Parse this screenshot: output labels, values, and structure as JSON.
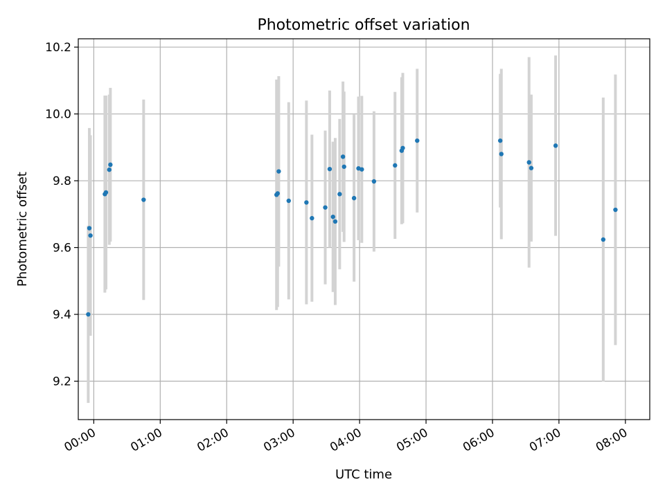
{
  "chart_data": {
    "type": "scatter",
    "title": "Photometric offset variation",
    "xlabel": "UTC time",
    "ylabel": "Photometric offset",
    "x_tick_labels": [
      "00:00",
      "01:00",
      "02:00",
      "03:00",
      "04:00",
      "05:00",
      "06:00",
      "07:00",
      "08:00"
    ],
    "x_ticks": [
      "00:00",
      "01:00",
      "02:00",
      "03:00",
      "04:00",
      "05:00",
      "06:00",
      "07:00",
      "08:00"
    ],
    "y_ticks": [
      9.2,
      9.4,
      9.6,
      9.8,
      10.0,
      10.2
    ],
    "y_tick_labels": [
      "9.2",
      "9.4",
      "9.6",
      "9.8",
      "10.0",
      "10.2"
    ],
    "xlim": [
      "-00:14",
      "08:22"
    ],
    "ylim": [
      9.085,
      10.225
    ],
    "grid": true,
    "errorbar_color": "#d3d3d3",
    "marker_color": "#1f77b4",
    "points": [
      {
        "x": "-00:05",
        "y": 9.4,
        "yerr": 0.265
      },
      {
        "x": "-00:04",
        "y": 9.658,
        "yerr": 0.3
      },
      {
        "x": "-00:03",
        "y": 9.636,
        "yerr": 0.3
      },
      {
        "x": "00:10",
        "y": 9.76,
        "yerr": 0.295
      },
      {
        "x": "00:11",
        "y": 9.765,
        "yerr": 0.29
      },
      {
        "x": "00:14",
        "y": 9.833,
        "yerr": 0.225
      },
      {
        "x": "00:15",
        "y": 9.848,
        "yerr": 0.23
      },
      {
        "x": "00:45",
        "y": 9.743,
        "yerr": 0.3
      },
      {
        "x": "02:45",
        "y": 9.758,
        "yerr": 0.345
      },
      {
        "x": "02:46",
        "y": 9.762,
        "yerr": 0.34
      },
      {
        "x": "02:47",
        "y": 9.828,
        "yerr": 0.285
      },
      {
        "x": "02:56",
        "y": 9.74,
        "yerr": 0.295
      },
      {
        "x": "03:12",
        "y": 9.735,
        "yerr": 0.305
      },
      {
        "x": "03:17",
        "y": 9.688,
        "yerr": 0.25
      },
      {
        "x": "03:29",
        "y": 9.72,
        "yerr": 0.23
      },
      {
        "x": "03:33",
        "y": 9.835,
        "yerr": 0.235
      },
      {
        "x": "03:36",
        "y": 9.692,
        "yerr": 0.225
      },
      {
        "x": "03:38",
        "y": 9.678,
        "yerr": 0.25
      },
      {
        "x": "03:42",
        "y": 9.76,
        "yerr": 0.225
      },
      {
        "x": "03:45",
        "y": 9.872,
        "yerr": 0.225
      },
      {
        "x": "03:46",
        "y": 9.842,
        "yerr": 0.225
      },
      {
        "x": "03:55",
        "y": 9.748,
        "yerr": 0.25
      },
      {
        "x": "03:59",
        "y": 9.837,
        "yerr": 0.215
      },
      {
        "x": "04:02",
        "y": 9.834,
        "yerr": 0.22
      },
      {
        "x": "04:13",
        "y": 9.798,
        "yerr": 0.21
      },
      {
        "x": "04:32",
        "y": 9.846,
        "yerr": 0.22
      },
      {
        "x": "04:38",
        "y": 9.89,
        "yerr": 0.22
      },
      {
        "x": "04:39",
        "y": 9.898,
        "yerr": 0.225
      },
      {
        "x": "04:52",
        "y": 9.92,
        "yerr": 0.215
      },
      {
        "x": "06:07",
        "y": 9.92,
        "yerr": 0.2
      },
      {
        "x": "06:08",
        "y": 9.88,
        "yerr": 0.255
      },
      {
        "x": "06:33",
        "y": 9.855,
        "yerr": 0.315
      },
      {
        "x": "06:35",
        "y": 9.838,
        "yerr": 0.22
      },
      {
        "x": "06:57",
        "y": 9.905,
        "yerr": 0.27
      },
      {
        "x": "07:40",
        "y": 9.624,
        "yerr": 0.425
      },
      {
        "x": "07:51",
        "y": 9.713,
        "yerr": 0.405
      }
    ]
  }
}
